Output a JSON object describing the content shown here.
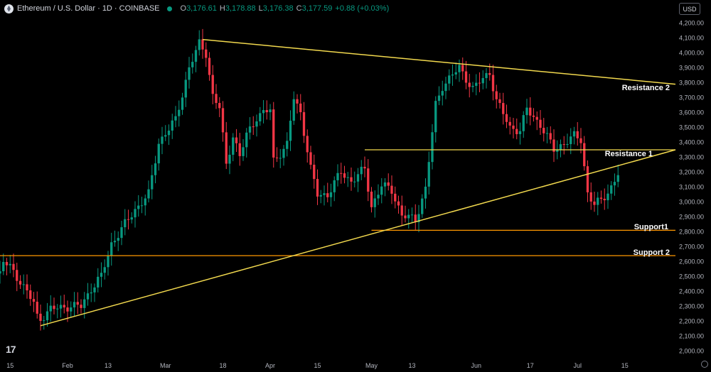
{
  "header": {
    "symbol": "Ethereum / U.S. Dollar · 1D · COINBASE",
    "open_label": "O",
    "open": "3,176.61",
    "high_label": "H",
    "high": "3,178.88",
    "low_label": "L",
    "low": "3,176.38",
    "close_label": "C",
    "close": "3,177.59",
    "change": "+0.88 (+0.03%)"
  },
  "currency": "USD",
  "chart_data": {
    "type": "candlestick",
    "title": "Ethereum / U.S. Dollar · 1D · COINBASE",
    "ylim": [
      1950,
      4250
    ],
    "y_ticks": [
      2000,
      2100,
      2200,
      2300,
      2400,
      2500,
      2600,
      2700,
      2800,
      2900,
      3000,
      3100,
      3200,
      3300,
      3400,
      3500,
      3600,
      3700,
      3800,
      3900,
      4000,
      4100,
      4200
    ],
    "y_tick_labels": [
      "2,000.00",
      "2,100.00",
      "2,200.00",
      "2,300.00",
      "2,400.00",
      "2,500.00",
      "2,600.00",
      "2,700.00",
      "2,800.00",
      "2,900.00",
      "3,000.00",
      "3,100.00",
      "3,200.00",
      "3,300.00",
      "3,400.00",
      "3,500.00",
      "3,600.00",
      "3,700.00",
      "3,800.00",
      "3,900.00",
      "4,000.00",
      "4,100.00",
      "4,200.00"
    ],
    "x_ticks": [
      {
        "label": "15",
        "date": "2024-01-15"
      },
      {
        "label": "Feb",
        "date": "2024-02-01"
      },
      {
        "label": "13",
        "date": "2024-02-13"
      },
      {
        "label": "Mar",
        "date": "2024-03-01"
      },
      {
        "label": "18",
        "date": "2024-03-18"
      },
      {
        "label": "Apr",
        "date": "2024-04-01"
      },
      {
        "label": "15",
        "date": "2024-04-15"
      },
      {
        "label": "May",
        "date": "2024-05-01"
      },
      {
        "label": "13",
        "date": "2024-05-13"
      },
      {
        "label": "Jun",
        "date": "2024-06-01"
      },
      {
        "label": "17",
        "date": "2024-06-17"
      },
      {
        "label": "Jul",
        "date": "2024-07-01"
      },
      {
        "label": "15",
        "date": "2024-07-15"
      }
    ],
    "x_range": [
      "2024-01-12",
      "2024-07-30"
    ],
    "key_closes": [
      [
        "2024-01-12",
        2520
      ],
      [
        "2024-01-13",
        2600
      ],
      [
        "2024-01-15",
        2560
      ],
      [
        "2024-01-18",
        2470
      ],
      [
        "2024-01-22",
        2320
      ],
      [
        "2024-01-23",
        2230
      ],
      [
        "2024-01-24",
        2220
      ],
      [
        "2024-01-27",
        2280
      ],
      [
        "2024-02-01",
        2300
      ],
      [
        "2024-02-05",
        2300
      ],
      [
        "2024-02-08",
        2420
      ],
      [
        "2024-02-11",
        2500
      ],
      [
        "2024-02-14",
        2720
      ],
      [
        "2024-02-18",
        2850
      ],
      [
        "2024-02-21",
        2950
      ],
      [
        "2024-02-25",
        3050
      ],
      [
        "2024-02-28",
        3400
      ],
      [
        "2024-03-04",
        3550
      ],
      [
        "2024-03-08",
        3900
      ],
      [
        "2024-03-11",
        4060
      ],
      [
        "2024-03-13",
        4000
      ],
      [
        "2024-03-15",
        3710
      ],
      [
        "2024-03-17",
        3630
      ],
      [
        "2024-03-19",
        3250
      ],
      [
        "2024-03-21",
        3450
      ],
      [
        "2024-03-23",
        3300
      ],
      [
        "2024-03-25",
        3450
      ],
      [
        "2024-03-28",
        3570
      ],
      [
        "2024-04-01",
        3620
      ],
      [
        "2024-04-02",
        3280
      ],
      [
        "2024-04-06",
        3380
      ],
      [
        "2024-04-08",
        3700
      ],
      [
        "2024-04-10",
        3600
      ],
      [
        "2024-04-13",
        3220
      ],
      [
        "2024-04-15",
        3050
      ],
      [
        "2024-04-18",
        3050
      ],
      [
        "2024-04-22",
        3200
      ],
      [
        "2024-04-25",
        3140
      ],
      [
        "2024-04-29",
        3220
      ],
      [
        "2024-05-01",
        2970
      ],
      [
        "2024-05-04",
        3110
      ],
      [
        "2024-05-07",
        3080
      ],
      [
        "2024-05-10",
        2910
      ],
      [
        "2024-05-14",
        2880
      ],
      [
        "2024-05-17",
        3090
      ],
      [
        "2024-05-20",
        3650
      ],
      [
        "2024-05-22",
        3780
      ],
      [
        "2024-05-27",
        3900
      ],
      [
        "2024-05-31",
        3760
      ],
      [
        "2024-06-05",
        3870
      ],
      [
        "2024-06-07",
        3680
      ],
      [
        "2024-06-11",
        3500
      ],
      [
        "2024-06-14",
        3480
      ],
      [
        "2024-06-16",
        3620
      ],
      [
        "2024-06-20",
        3520
      ],
      [
        "2024-06-24",
        3350
      ],
      [
        "2024-06-26",
        3380
      ],
      [
        "2024-06-30",
        3440
      ],
      [
        "2024-07-02",
        3420
      ],
      [
        "2024-07-04",
        3060
      ],
      [
        "2024-07-06",
        2980
      ],
      [
        "2024-07-08",
        3010
      ],
      [
        "2024-07-11",
        3100
      ],
      [
        "2024-07-13",
        3180
      ]
    ],
    "trendlines": [
      {
        "label": "Resistance 2",
        "from": [
          "2024-03-12",
          4090
        ],
        "to": [
          "2024-07-30",
          3790
        ]
      },
      {
        "label": "",
        "from": [
          "2024-01-24",
          2170
        ],
        "to": [
          "2024-07-30",
          3350
        ]
      }
    ],
    "horizontal_levels": [
      {
        "label": "Resistance 1",
        "value": 3350,
        "from": "2024-04-29"
      },
      {
        "label": "Support1",
        "value": 2810,
        "from": "2024-05-01"
      },
      {
        "label": "Support 2",
        "value": 2640,
        "from": "2024-01-12"
      }
    ],
    "colors": {
      "up": "#089981",
      "down": "#f23645",
      "levels": "#f2d94e",
      "support": "#ff9800"
    }
  }
}
